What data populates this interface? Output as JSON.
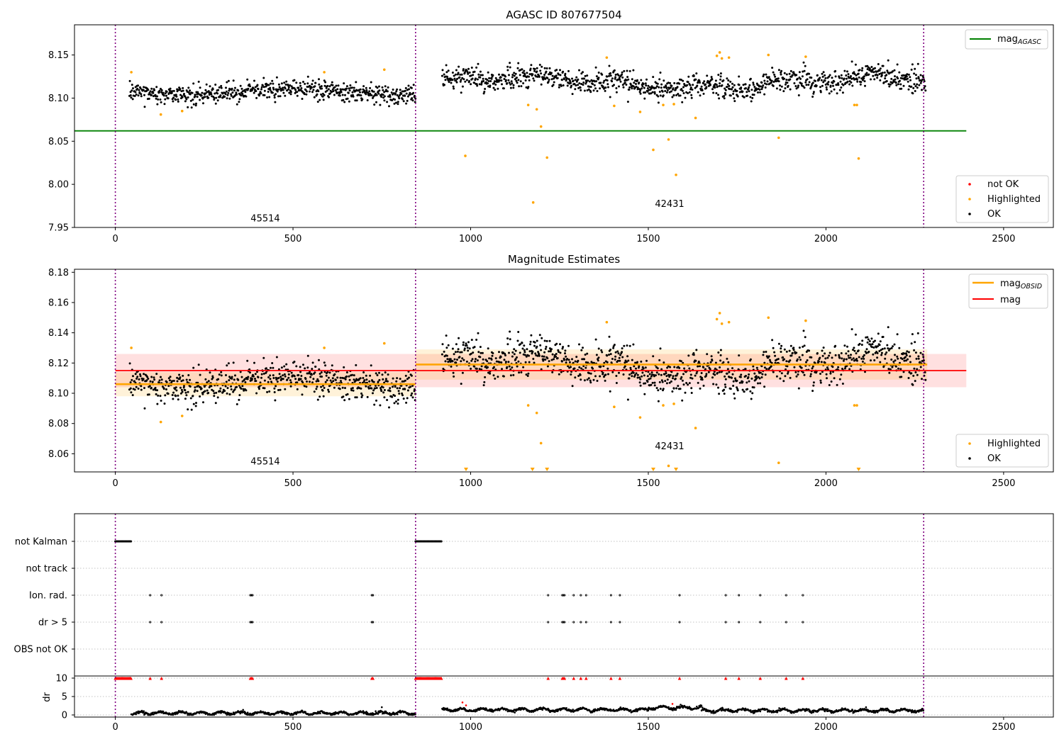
{
  "chart_data": [
    {
      "type": "scatter",
      "title": "AGASC ID 807677504",
      "xlabel": "",
      "ylabel": "",
      "xlim": [
        -115,
        2640
      ],
      "ylim": [
        7.95,
        8.185
      ],
      "xticks": [
        0,
        500,
        1000,
        1500,
        2000,
        2500
      ],
      "yticks": [
        7.95,
        8.0,
        8.05,
        8.1,
        8.15
      ],
      "grid": false,
      "obsid_boundaries": [
        0,
        845,
        2275
      ],
      "obsid_labels": [
        {
          "text": "45514",
          "x": 422,
          "y": 7.957
        },
        {
          "text": "42431",
          "x": 1560,
          "y": 7.974
        }
      ],
      "reference_lines": [
        {
          "name": "mag_AGASC",
          "y": 8.062,
          "x_range": [
            -115,
            2395
          ],
          "color": "#008000"
        }
      ],
      "segments": [
        {
          "x_range": [
            40,
            845
          ],
          "mean": 8.107,
          "sd": 0.0075
        },
        {
          "x_range": [
            920,
            2280
          ],
          "mean": 8.118,
          "sd": 0.0095
        }
      ],
      "series": [
        {
          "name": "not OK",
          "color": "#ff0000",
          "points": []
        },
        {
          "name": "Highlighted",
          "color": "#ffa500",
          "points": [
            [
              45,
              8.13
            ],
            [
              128,
              8.081
            ],
            [
              188,
              8.085
            ],
            [
              588,
              8.13
            ],
            [
              757,
              8.133
            ],
            [
              985,
              8.033
            ],
            [
              1162,
              8.092
            ],
            [
              1176,
              7.979
            ],
            [
              1186,
              8.087
            ],
            [
              1198,
              8.067
            ],
            [
              1215,
              8.031
            ],
            [
              1383,
              8.147
            ],
            [
              1404,
              8.091
            ],
            [
              1477,
              8.084
            ],
            [
              1514,
              8.04
            ],
            [
              1542,
              8.092
            ],
            [
              1557,
              8.052
            ],
            [
              1572,
              8.093
            ],
            [
              1578,
              8.011
            ],
            [
              1633,
              8.077
            ],
            [
              1693,
              8.149
            ],
            [
              1701,
              8.153
            ],
            [
              1707,
              8.146
            ],
            [
              1727,
              8.147
            ],
            [
              1838,
              8.15
            ],
            [
              1867,
              8.054
            ],
            [
              1943,
              8.148
            ],
            [
              2080,
              8.092
            ],
            [
              2087,
              8.092
            ],
            [
              2092,
              8.03
            ]
          ]
        },
        {
          "name": "OK",
          "color": "#000000",
          "points": []
        }
      ],
      "legend": [
        {
          "name": "mag_AGASC",
          "placement": "upper right"
        },
        {
          "name": "not OK / Highlighted / OK",
          "placement": "lower right"
        }
      ]
    },
    {
      "type": "scatter",
      "title": "Magnitude Estimates",
      "xlabel": "",
      "ylabel": "",
      "xlim": [
        -115,
        2640
      ],
      "ylim": [
        8.048,
        8.182
      ],
      "xticks": [
        0,
        500,
        1000,
        1500,
        2000,
        2500
      ],
      "yticks": [
        8.06,
        8.08,
        8.1,
        8.12,
        8.14,
        8.16,
        8.18
      ],
      "grid": false,
      "obsid_boundaries": [
        0,
        845,
        2275
      ],
      "obsid_labels": [
        {
          "text": "45514",
          "x": 422,
          "y": 8.053
        },
        {
          "text": "42431",
          "x": 1560,
          "y": 8.063
        }
      ],
      "bands": [
        {
          "name": "mag",
          "x_range": [
            0,
            2395
          ],
          "center": 8.115,
          "low": 8.104,
          "high": 8.126,
          "color": "#ff0000"
        },
        {
          "name": "mag_OBSID 45514",
          "x_range": [
            0,
            845
          ],
          "center": 8.106,
          "low": 8.098,
          "high": 8.114,
          "color": "#ffa500"
        },
        {
          "name": "mag_OBSID 42431",
          "x_range": [
            845,
            2285
          ],
          "center": 8.119,
          "low": 8.109,
          "high": 8.129,
          "color": "#ffa500"
        }
      ],
      "series": [
        {
          "name": "Highlighted",
          "color": "#ffa500",
          "points": "same as panel 1"
        },
        {
          "name": "OK",
          "color": "#000000",
          "points": "same as panel 1"
        }
      ],
      "off_scale_markers_x": [
        987,
        1174,
        1215,
        1514,
        1578,
        2092
      ],
      "legend": [
        {
          "name": "mag_OBSID / mag",
          "placement": "upper right"
        },
        {
          "name": "Highlighted / OK",
          "placement": "lower right"
        }
      ]
    },
    {
      "type": "scatter",
      "title": "",
      "xlabel": "",
      "ylabel": "dr",
      "xlim": [
        -115,
        2640
      ],
      "xticks": [
        0,
        500,
        1000,
        1500,
        2000,
        2500
      ],
      "flag_rows": [
        "not Kalman",
        "not track",
        "Ion. rad.",
        "dr > 5",
        "OBS not OK"
      ],
      "flag_events": {
        "not Kalman": [
          [
            0,
            45
          ],
          [
            845,
            918
          ]
        ],
        "not track": [],
        "Ion. rad.": [
          [
            98
          ],
          [
            130
          ],
          [
            380,
            387
          ],
          [
            722,
            727
          ],
          [
            1218
          ],
          [
            1258,
            1264
          ],
          [
            1290
          ],
          [
            1310
          ],
          [
            1325
          ],
          [
            1395
          ],
          [
            1420
          ],
          [
            1588
          ],
          [
            1718
          ],
          [
            1755
          ],
          [
            1815
          ],
          [
            1888
          ],
          [
            1935
          ]
        ],
        "dr > 5": [
          [
            98
          ],
          [
            130
          ],
          [
            380,
            387
          ],
          [
            722,
            727
          ],
          [
            1218
          ],
          [
            1258,
            1264
          ],
          [
            1290
          ],
          [
            1310
          ],
          [
            1325
          ],
          [
            1395
          ],
          [
            1420
          ],
          [
            1588
          ],
          [
            1718
          ],
          [
            1755
          ],
          [
            1815
          ],
          [
            1888
          ],
          [
            1935
          ]
        ],
        "OBS not OK": []
      },
      "dr": {
        "ylim": [
          -0.5,
          10.5
        ],
        "yticks": [
          0,
          5,
          10
        ],
        "clipped_value": 10,
        "segments": [
          {
            "x_range": [
              45,
              845
            ],
            "level": 0.5
          },
          {
            "x_range": [
              920,
              1500
            ],
            "level": 1.4
          },
          {
            "x_range": [
              1500,
              1650
            ],
            "level": 2.0
          },
          {
            "x_range": [
              1650,
              2275
            ],
            "level": 1.2
          }
        ],
        "outliers": [
          [
            750,
            2.1
          ],
          [
            977,
            3.4
          ],
          [
            987,
            2.6
          ],
          [
            1568,
            3.0
          ],
          [
            1595,
            2.2
          ]
        ]
      }
    }
  ]
}
